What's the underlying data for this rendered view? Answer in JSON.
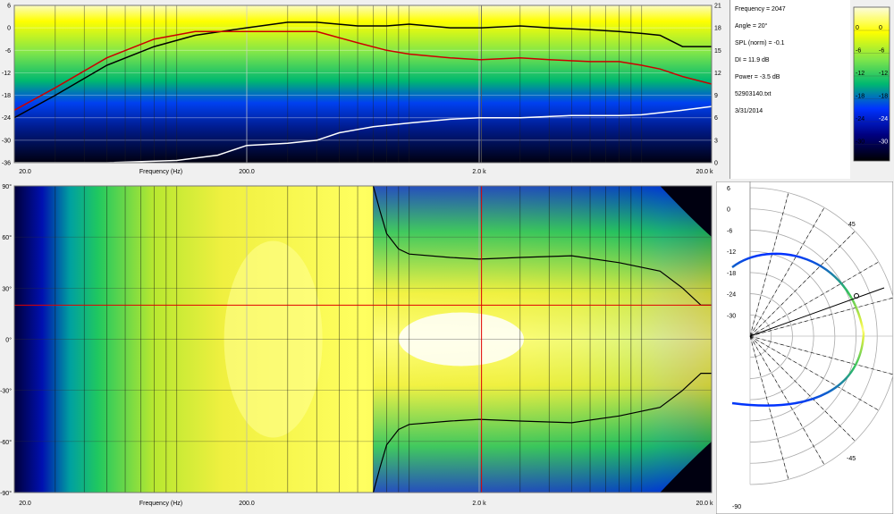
{
  "info": {
    "frequency": "Frequency = 2047",
    "angle": "Angle = 20°",
    "spl": "SPL (norm) = -0.1",
    "di": "DI = 11.9 dB",
    "power": "Power = -3.5 dB",
    "filename": "52903140.txt",
    "date": "3/31/2014"
  },
  "colorbar": {
    "ticks": [
      "0",
      "-6",
      "-12",
      "-18",
      "-24",
      "-30"
    ],
    "ticks_right": [
      "0",
      "-6",
      "-12",
      "-18",
      "-24",
      "-30"
    ],
    "stops": [
      "#ffffff",
      "#ffff00",
      "#00cc33",
      "#0033ff",
      "#000088",
      "#000000"
    ]
  },
  "chart_data": [
    {
      "type": "line",
      "x_scale": "log",
      "xlim": [
        20,
        20000
      ],
      "x_ticks": [
        "20.0",
        "200.0",
        "2.0 k",
        "20.0 k"
      ],
      "xlabel": "Frequency (Hz)",
      "ylim_left": [
        -36,
        6
      ],
      "y_ticks_left": [
        "6",
        "0",
        "-6",
        "-12",
        "-18",
        "-24",
        "-30",
        "-36"
      ],
      "ylim_right": [
        0,
        21
      ],
      "y_ticks_right": [
        "21",
        "18",
        "15",
        "12",
        "9",
        "6",
        "3",
        "0"
      ],
      "grid": true,
      "cursor_frequency": 2047,
      "series": [
        {
          "axis": "left",
          "color": "#000000",
          "x": [
            20,
            30,
            50,
            80,
            120,
            200,
            300,
            400,
            600,
            800,
            1000,
            1500,
            2000,
            2047,
            3000,
            4000,
            6000,
            8000,
            10000,
            12000,
            15000,
            20000
          ],
          "y": [
            -24,
            -18,
            -10,
            -5,
            -2,
            0,
            1.5,
            1.5,
            0.5,
            0.5,
            1,
            0,
            0,
            0,
            0.5,
            0,
            -0.5,
            -1,
            -1.5,
            -2,
            -5,
            -5
          ]
        },
        {
          "axis": "left",
          "color": "#cc0000",
          "x": [
            20,
            30,
            50,
            80,
            120,
            200,
            300,
            400,
            600,
            800,
            1000,
            1500,
            2000,
            2047,
            3000,
            4000,
            6000,
            8000,
            10000,
            12000,
            15000,
            20000
          ],
          "y": [
            -22,
            -16,
            -8,
            -3,
            -1,
            -1,
            -1,
            -1,
            -4,
            -6,
            -7,
            -8,
            -8.5,
            -8.5,
            -8,
            -8.5,
            -9,
            -9,
            -10,
            -11,
            -13,
            -15
          ]
        },
        {
          "axis": "right",
          "color": "#ffffff",
          "x": [
            20,
            50,
            100,
            150,
            200,
            300,
            400,
            500,
            700,
            1000,
            1500,
            2000,
            3000,
            5000,
            8000,
            10000,
            15000,
            20000
          ],
          "y": [
            0,
            0,
            0.3,
            1,
            2.3,
            2.6,
            3,
            4,
            4.8,
            5.3,
            5.8,
            6,
            6,
            6.3,
            6.3,
            6.4,
            7,
            7.5
          ]
        }
      ]
    },
    {
      "type": "heatmap",
      "x_scale": "log",
      "xlim": [
        20,
        20000
      ],
      "x_ticks": [
        "20.0",
        "200.0",
        "2.0 k",
        "20.0 k"
      ],
      "xlabel": "Frequency (Hz)",
      "ylim": [
        -90,
        90
      ],
      "y_ticks": [
        "90°",
        "60°",
        "30°",
        "0°",
        "-30°",
        "-60°",
        "-90°"
      ],
      "cursor": {
        "frequency": 2047,
        "angle": 20
      },
      "contour_-6dB_upper": {
        "x": [
          700,
          750,
          800,
          900,
          1000,
          1500,
          2000,
          3000,
          5000,
          8000,
          12000,
          15000,
          18000,
          20000
        ],
        "y": [
          90,
          75,
          62,
          53,
          50,
          48,
          47,
          48,
          49,
          45,
          40,
          30,
          20,
          20
        ]
      },
      "contour_-6dB_lower": {
        "x": [
          700,
          750,
          800,
          900,
          1000,
          1500,
          2000,
          3000,
          5000,
          8000,
          12000,
          15000,
          18000,
          20000
        ],
        "y": [
          -90,
          -75,
          -62,
          -53,
          -50,
          -48,
          -47,
          -48,
          -49,
          -45,
          -40,
          -30,
          -20,
          -20
        ]
      }
    },
    {
      "type": "polar",
      "r_ticks": [
        "6",
        "0",
        "-6",
        "-12",
        "-18",
        "-24",
        "-30"
      ],
      "angle_labels": [
        "45",
        "-45",
        "-90"
      ],
      "cursor_angle": 20,
      "frequency": 2047
    }
  ]
}
